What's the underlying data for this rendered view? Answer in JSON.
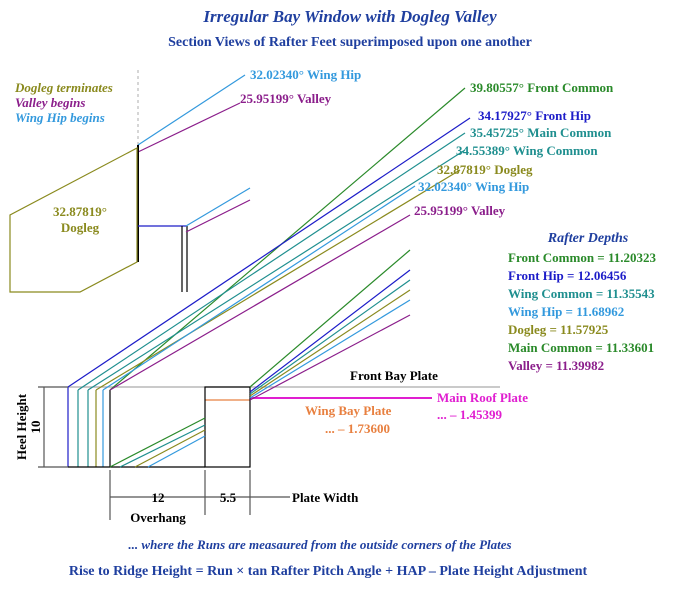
{
  "title": "Irregular Bay Window with Dogleg Valley",
  "subtitle": "Section Views of Rafter Feet superimposed upon one another",
  "inset": {
    "notes": [
      "Dogleg terminates",
      "Valley begins",
      "Wing Hip begins"
    ],
    "wing_hip": "32.02340° Wing Hip",
    "valley": "25.95199° Valley",
    "dogleg_angle": "32.87819°",
    "dogleg": "Dogleg"
  },
  "pitch_labels": [
    "39.80557° Front Common",
    "34.17927° Front Hip",
    "35.45725° Main Common",
    "34.55389° Wing Common",
    "32.87819° Dogleg",
    "32.02340° Wing Hip",
    "25.95199° Valley"
  ],
  "rafter_depths": {
    "title": "Rafter Depths",
    "items": [
      "Front Common = 11.20323",
      "Front Hip = 12.06456",
      "Wing Common = 11.35543",
      "Wing Hip = 11.68962",
      "Dogleg = 11.57925",
      "Main Common = 11.33601",
      "Valley = 11.39982"
    ]
  },
  "plates": {
    "front_bay": "Front Bay Plate",
    "wing_bay": "Wing Bay Plate",
    "wing_bay_adjust": "... – 1.73600",
    "main_roof": "Main Roof Plate",
    "main_roof_adjust": "... – 1.45399"
  },
  "dimensions": {
    "heel_height": "Heel Height",
    "heel_value": "10",
    "overhang_value": "12",
    "overhang": "Overhang",
    "plate_value": "5.5",
    "plate_width": "Plate Width"
  },
  "footer": [
    "... where the Runs are measaured from the outside corners of the Plates",
    "Rise to Ridge Height = Run × tan Rafter Pitch Angle + HAP – Plate Height Adjustment"
  ]
}
